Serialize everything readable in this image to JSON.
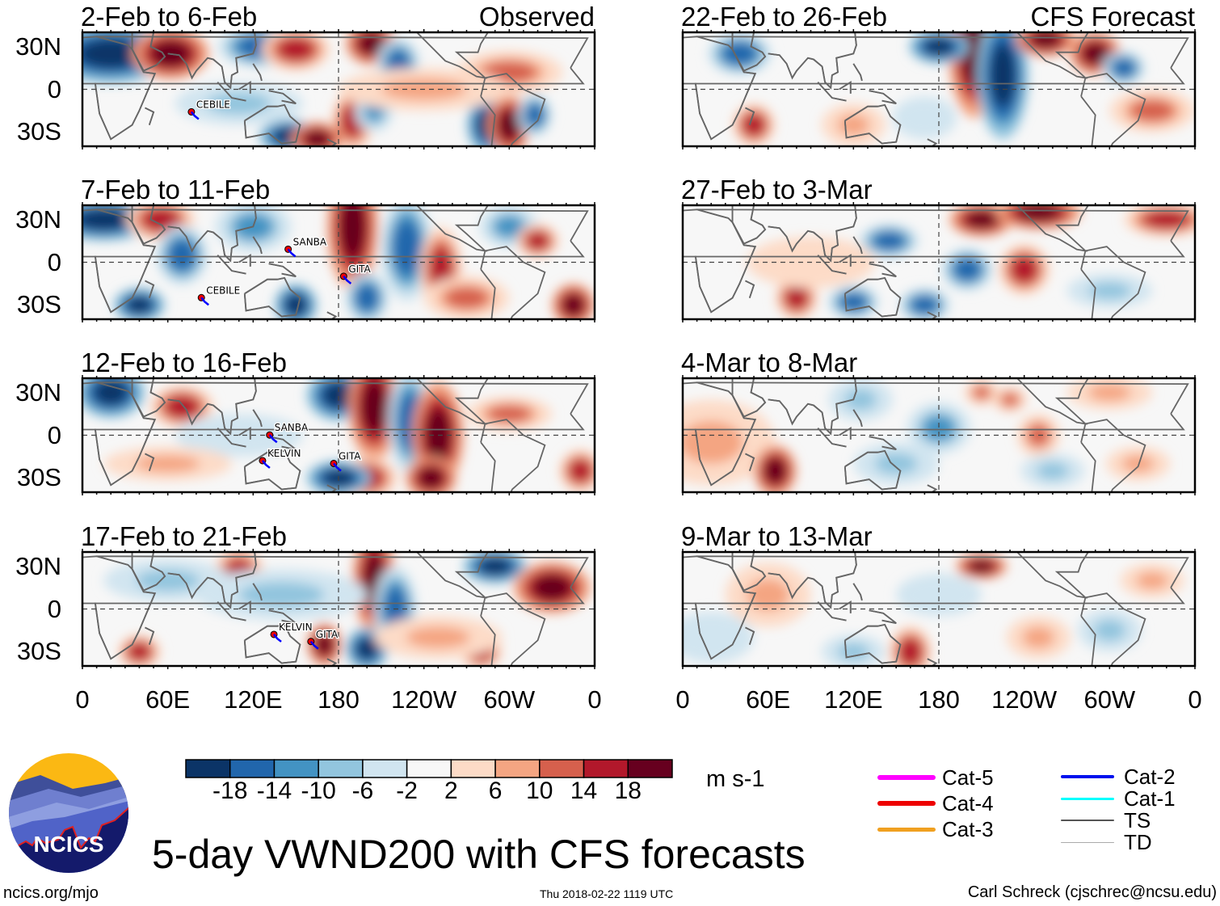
{
  "chart_data": {
    "type": "heatmap",
    "title": "5-day VWND200 with CFS forecasts",
    "units": "m s-1",
    "columns": [
      {
        "label": "Observed",
        "panels": [
          "2-Feb to 6-Feb",
          "7-Feb to 11-Feb",
          "12-Feb to 16-Feb",
          "17-Feb to 21-Feb"
        ]
      },
      {
        "label": "CFS Forecast",
        "panels": [
          "22-Feb to 26-Feb",
          "27-Feb to 3-Mar",
          "4-Mar to 8-Mar",
          "9-Mar to 13-Mar"
        ]
      }
    ],
    "lat_ticks": [
      "30N",
      "0",
      "30S"
    ],
    "lon_ticks": [
      "0",
      "60E",
      "120E",
      "180",
      "120W",
      "60W",
      "0"
    ],
    "colorbar": {
      "levels": [
        "-18",
        "-14",
        "-10",
        "-6",
        "-2",
        "2",
        "6",
        "10",
        "14",
        "18"
      ],
      "colors": [
        "#0b3467",
        "#2166ac",
        "#4393c3",
        "#92c5de",
        "#d1e5f0",
        "#f7f7f7",
        "#fddbc7",
        "#f4a582",
        "#d6604d",
        "#b2182b",
        "#67001f"
      ]
    },
    "storms": [
      {
        "panel": 0,
        "name": "CEBILE"
      },
      {
        "panel": 1,
        "name": "SANBA"
      },
      {
        "panel": 1,
        "name": "GITA"
      },
      {
        "panel": 1,
        "name": "CEBILE"
      },
      {
        "panel": 2,
        "name": "SANBA"
      },
      {
        "panel": 2,
        "name": "KELVIN"
      },
      {
        "panel": 2,
        "name": "GITA"
      },
      {
        "panel": 3,
        "name": "KELVIN"
      },
      {
        "panel": 3,
        "name": "GITA"
      }
    ],
    "track_legend": [
      {
        "label": "Cat-5",
        "color": "#ff00ff"
      },
      {
        "label": "Cat-4",
        "color": "#ee0000"
      },
      {
        "label": "Cat-3",
        "color": "#f0a020"
      },
      {
        "label": "Cat-2",
        "color": "#0010ee"
      },
      {
        "label": "Cat-1",
        "color": "#00ffff"
      },
      {
        "label": "TS",
        "color": "#555555"
      },
      {
        "label": "TD",
        "color": "#aaaaaa"
      }
    ]
  },
  "footer": {
    "logo_text": "NCICS",
    "site": "ncics.org/mjo",
    "timestamp": "Thu 2018-02-22 1119 UTC",
    "credit": "Carl Schreck (cjschrec@ncsu.edu)"
  }
}
